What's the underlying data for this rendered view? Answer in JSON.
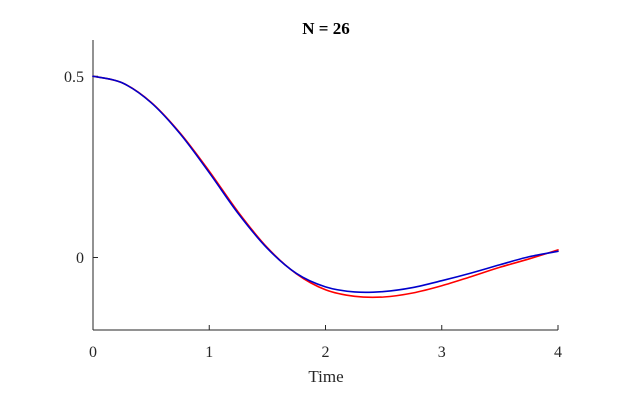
{
  "chart_data": {
    "type": "line",
    "title": "N = 26",
    "xlabel": "Time",
    "ylabel": "",
    "xlim": [
      0,
      4
    ],
    "ylim": [
      -0.2,
      0.6
    ],
    "xticks": [
      0,
      1,
      2,
      3,
      4
    ],
    "xtick_labels": [
      "0",
      "1",
      "2",
      "3",
      "4"
    ],
    "yticks": [
      0,
      0.5
    ],
    "ytick_labels": [
      "0",
      "0.5"
    ],
    "grid": false,
    "legend": "none",
    "series": [
      {
        "color": "#ff0000",
        "x": [
          0,
          0.25,
          0.5,
          0.75,
          1.0,
          1.25,
          1.5,
          1.75,
          2.0,
          2.25,
          2.5,
          2.75,
          3.0,
          3.25,
          3.5,
          3.75,
          4.0
        ],
        "y": [
          0.5,
          0.482,
          0.428,
          0.343,
          0.238,
          0.125,
          0.027,
          -0.045,
          -0.089,
          -0.107,
          -0.109,
          -0.098,
          -0.078,
          -0.053,
          -0.027,
          -0.004,
          0.021
        ]
      },
      {
        "color": "#0000cc",
        "x": [
          0,
          0.25,
          0.5,
          0.75,
          1.0,
          1.25,
          1.5,
          1.75,
          2.0,
          2.25,
          2.5,
          2.75,
          3.0,
          3.25,
          3.5,
          3.75,
          4.0
        ],
        "y": [
          0.5,
          0.482,
          0.427,
          0.341,
          0.234,
          0.121,
          0.025,
          -0.044,
          -0.081,
          -0.095,
          -0.094,
          -0.083,
          -0.064,
          -0.043,
          -0.02,
          0.002,
          0.017
        ]
      }
    ]
  }
}
